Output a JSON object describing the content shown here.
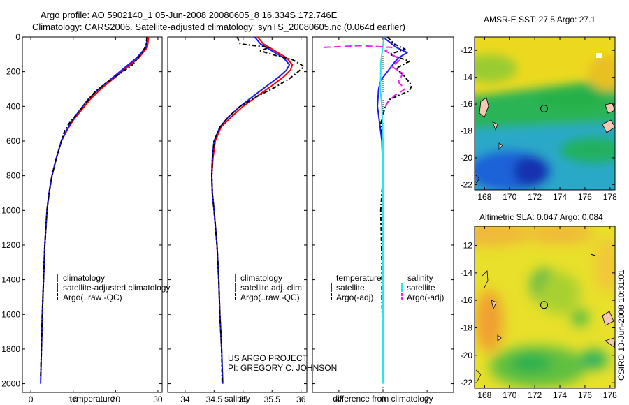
{
  "header": {
    "line1": "Argo profile: AO 5902140_1 05-Jun-2008 20080605_8 16.334S 172.746E",
    "line2": "Climatology: CARS2006. Satellite-adjusted climatology: synTS_20080605.nc (0.064d earlier)"
  },
  "side_label": "CSIRO 13-Jun-2008 10:31:01",
  "colors": {
    "red": "#ff0000",
    "blue": "#1a1aff",
    "black": "#000000",
    "cyan": "#22e8f0",
    "magenta": "#ee22ee"
  },
  "chart_data": [
    {
      "type": "line",
      "id": "temperature",
      "xlabel": "temperature",
      "xlim": [
        -2,
        31
      ],
      "xticks": [
        0,
        10,
        20,
        30
      ],
      "ylim": [
        0,
        2050
      ],
      "yticks": [
        0,
        200,
        400,
        600,
        800,
        1000,
        1200,
        1400,
        1600,
        1800,
        2000
      ],
      "y_reversed": true,
      "legend": {
        "position": "lower-right",
        "entries": [
          "climatology",
          "satellite-adjusted climatology",
          "Argo(..raw -QC)"
        ]
      },
      "series": [
        {
          "name": "climatology",
          "color": "red",
          "dash": "",
          "points": [
            [
              27.8,
              0
            ],
            [
              27.5,
              60
            ],
            [
              25.5,
              120
            ],
            [
              22.5,
              180
            ],
            [
              19.5,
              240
            ],
            [
              16.5,
              300
            ],
            [
              14,
              360
            ],
            [
              12,
              420
            ],
            [
              10,
              480
            ],
            [
              8.5,
              540
            ],
            [
              7.2,
              600
            ],
            [
              6,
              700
            ],
            [
              5,
              800
            ],
            [
              4.3,
              900
            ],
            [
              3.8,
              1000
            ],
            [
              3.3,
              1200
            ],
            [
              3,
              1400
            ],
            [
              2.7,
              1600
            ],
            [
              2.5,
              1800
            ]
          ]
        },
        {
          "name": "satellite-adjusted climatology",
          "color": "blue",
          "dash": "",
          "points": [
            [
              27.5,
              0
            ],
            [
              27.2,
              60
            ],
            [
              25,
              120
            ],
            [
              22,
              180
            ],
            [
              19,
              240
            ],
            [
              16,
              300
            ],
            [
              13.5,
              360
            ],
            [
              11.6,
              420
            ],
            [
              9.8,
              480
            ],
            [
              8.4,
              540
            ],
            [
              7.2,
              600
            ],
            [
              6,
              700
            ],
            [
              5,
              800
            ],
            [
              4.3,
              900
            ],
            [
              3.8,
              1000
            ],
            [
              3.3,
              1200
            ],
            [
              3,
              1400
            ],
            [
              2.7,
              1600
            ],
            [
              2.5,
              1800
            ],
            [
              2.3,
              2000
            ]
          ]
        },
        {
          "name": "Argo(..raw -QC)",
          "color": "black",
          "dash": "6,3,2,3",
          "points": [
            [
              27.4,
              0
            ],
            [
              27.2,
              50
            ],
            [
              26,
              100
            ],
            [
              24,
              160
            ],
            [
              20.5,
              220
            ],
            [
              17.5,
              270
            ],
            [
              15,
              320
            ],
            [
              13,
              380
            ],
            [
              11,
              440
            ],
            [
              9,
              500
            ],
            [
              8,
              540
            ],
            [
              7.2,
              600
            ],
            [
              6,
              700
            ],
            [
              5,
              800
            ],
            [
              4.3,
              900
            ],
            [
              3.8,
              1000
            ],
            [
              3.3,
              1200
            ],
            [
              3,
              1400
            ],
            [
              2.7,
              1600
            ],
            [
              2.5,
              1800
            ],
            [
              2.3,
              1970
            ]
          ]
        }
      ]
    },
    {
      "type": "line",
      "id": "salinity",
      "xlabel": "salinity",
      "xlim": [
        33.7,
        36.1
      ],
      "xticks": [
        34,
        34.5,
        35,
        35.5,
        36
      ],
      "xtick_labels": [
        "34",
        "34.5",
        "35",
        "35.5",
        "36"
      ],
      "ylim": [
        0,
        2050
      ],
      "y_reversed": true,
      "legend": {
        "position": "lower-right",
        "entries": [
          "climatology",
          "satellite adj. clim.",
          "Argo(..raw -QC)"
        ]
      },
      "series": [
        {
          "name": "climatology",
          "color": "red",
          "dash": "",
          "points": [
            [
              35.25,
              0
            ],
            [
              35.35,
              40
            ],
            [
              35.55,
              80
            ],
            [
              35.75,
              120
            ],
            [
              35.85,
              160
            ],
            [
              35.82,
              190
            ],
            [
              35.7,
              230
            ],
            [
              35.5,
              280
            ],
            [
              35.25,
              340
            ],
            [
              35.0,
              400
            ],
            [
              34.8,
              460
            ],
            [
              34.62,
              520
            ],
            [
              34.52,
              600
            ],
            [
              34.48,
              700
            ],
            [
              34.46,
              800
            ],
            [
              34.47,
              900
            ],
            [
              34.5,
              1000
            ],
            [
              34.55,
              1200
            ],
            [
              34.58,
              1400
            ],
            [
              34.6,
              1600
            ],
            [
              34.63,
              1800
            ]
          ]
        },
        {
          "name": "satellite adj. clim.",
          "color": "blue",
          "dash": "",
          "points": [
            [
              35.2,
              0
            ],
            [
              35.3,
              40
            ],
            [
              35.5,
              80
            ],
            [
              35.7,
              120
            ],
            [
              35.8,
              160
            ],
            [
              35.75,
              190
            ],
            [
              35.62,
              230
            ],
            [
              35.42,
              280
            ],
            [
              35.18,
              340
            ],
            [
              34.95,
              400
            ],
            [
              34.75,
              460
            ],
            [
              34.6,
              520
            ],
            [
              34.5,
              600
            ],
            [
              34.47,
              700
            ],
            [
              34.46,
              800
            ],
            [
              34.47,
              900
            ],
            [
              34.5,
              1000
            ],
            [
              34.55,
              1200
            ],
            [
              34.58,
              1400
            ],
            [
              34.6,
              1600
            ],
            [
              34.63,
              1800
            ],
            [
              34.65,
              2000
            ]
          ]
        },
        {
          "name": "Argo(..raw -QC)",
          "color": "black",
          "dash": "6,3,2,3",
          "points": [
            [
              34.9,
              0
            ],
            [
              34.95,
              40
            ],
            [
              35.45,
              60
            ],
            [
              35.3,
              80
            ],
            [
              35.6,
              110
            ],
            [
              35.85,
              130
            ],
            [
              36.05,
              170
            ],
            [
              35.95,
              200
            ],
            [
              35.8,
              240
            ],
            [
              35.55,
              290
            ],
            [
              35.2,
              350
            ],
            [
              34.95,
              400
            ],
            [
              34.75,
              460
            ],
            [
              34.6,
              520
            ],
            [
              34.5,
              600
            ],
            [
              34.47,
              700
            ],
            [
              34.46,
              800
            ],
            [
              34.47,
              900
            ],
            [
              34.5,
              1000
            ],
            [
              34.55,
              1200
            ],
            [
              34.58,
              1400
            ],
            [
              34.6,
              1600
            ],
            [
              34.63,
              1800
            ],
            [
              34.64,
              1990
            ]
          ]
        }
      ],
      "annotation": [
        "US ARGO PROJECT",
        "PI: GREGORY C. JOHNSON"
      ]
    },
    {
      "type": "line",
      "id": "difference",
      "xlabel": "difference from climatology",
      "xlim": [
        -3.2,
        3.2
      ],
      "xticks": [
        -2,
        0,
        2
      ],
      "ylim": [
        0,
        2050
      ],
      "y_reversed": true,
      "legend": {
        "position": "lower-center",
        "temperature_header": "temperature",
        "salinity_header": "salinity",
        "entries": [
          "satellite",
          "Argo(-adj)",
          "satellite",
          "Argo(-adj)"
        ]
      },
      "series": [
        {
          "name": "temperature satellite",
          "color": "blue",
          "dash": "",
          "points": [
            [
              0,
              0
            ],
            [
              0.3,
              30
            ],
            [
              0.6,
              60
            ],
            [
              1.1,
              90
            ],
            [
              0.7,
              120
            ],
            [
              0.5,
              150
            ],
            [
              0.2,
              200
            ],
            [
              -0.1,
              250
            ],
            [
              -0.2,
              300
            ],
            [
              -0.25,
              400
            ],
            [
              -0.15,
              500
            ],
            [
              -0.05,
              600
            ],
            [
              0,
              800
            ],
            [
              0,
              1000
            ],
            [
              0,
              1400
            ],
            [
              0,
              1800
            ]
          ]
        },
        {
          "name": "temperature Argo(-adj)",
          "color": "black",
          "dash": "6,3,2,3",
          "points": [
            [
              0.2,
              0
            ],
            [
              0.5,
              40
            ],
            [
              1.0,
              70
            ],
            [
              0.3,
              100
            ],
            [
              1.2,
              140
            ],
            [
              0.6,
              180
            ],
            [
              1.0,
              230
            ],
            [
              1.3,
              280
            ],
            [
              1.2,
              310
            ],
            [
              0.3,
              360
            ],
            [
              0.1,
              400
            ],
            [
              0,
              450
            ],
            [
              -0.1,
              500
            ],
            [
              0,
              600
            ],
            [
              0,
              800
            ],
            [
              -0.1,
              1000
            ],
            [
              -0.05,
              1300
            ],
            [
              -0.05,
              1500
            ],
            [
              0,
              1800
            ],
            [
              0,
              1950
            ]
          ]
        },
        {
          "name": "salinity satellite",
          "color": "cyan",
          "dash": "",
          "points": [
            [
              0.05,
              0
            ],
            [
              0,
              50
            ],
            [
              -0.05,
              100
            ],
            [
              -0.1,
              150
            ],
            [
              -0.1,
              200
            ],
            [
              -0.12,
              300
            ],
            [
              -0.05,
              400
            ],
            [
              -0.03,
              500
            ],
            [
              0,
              600
            ],
            [
              0,
              800
            ],
            [
              0,
              1000
            ],
            [
              0,
              1500
            ],
            [
              0,
              2000
            ]
          ]
        },
        {
          "name": "salinity Argo(-adj)",
          "color": "magenta",
          "dash": "10,5",
          "points": [
            [
              -2.7,
              60
            ],
            [
              -1.0,
              50
            ],
            [
              0.4,
              60
            ],
            [
              0.1,
              80
            ],
            [
              0.8,
              130
            ],
            [
              0.4,
              170
            ],
            [
              0.9,
              210
            ],
            [
              0.7,
              260
            ],
            [
              1.0,
              300
            ],
            [
              0.5,
              340
            ],
            [
              0.2,
              380
            ],
            [
              0.05,
              420
            ]
          ]
        }
      ]
    }
  ],
  "maps": [
    {
      "id": "sst",
      "title": "AMSR-E SST: 27.5 Argo: 27.1",
      "xticks": [
        168,
        170,
        172,
        174,
        176,
        178
      ],
      "yticks": [
        -12,
        -14,
        -16,
        -18,
        -20,
        -22
      ],
      "marker": {
        "lon": 172.746,
        "lat": -16.334
      }
    },
    {
      "id": "sla",
      "title": "Altimetric SLA: 0.047 Argo: 0.084",
      "xticks": [
        168,
        170,
        172,
        174,
        176,
        178
      ],
      "yticks": [
        -12,
        -14,
        -16,
        -18,
        -20,
        -22
      ],
      "marker": {
        "lon": 172.746,
        "lat": -16.334
      }
    }
  ]
}
